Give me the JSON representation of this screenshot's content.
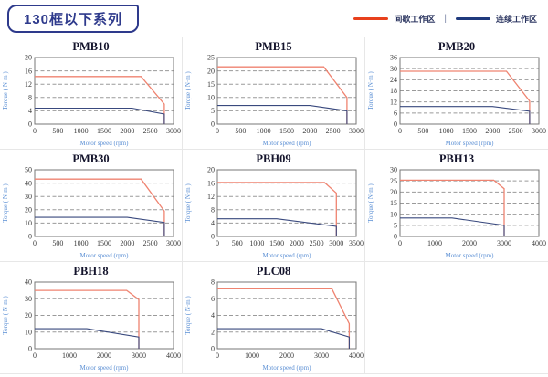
{
  "header": {
    "title": "130框以下系列",
    "legend_separator": "|",
    "legend": [
      {
        "name": "intermittent-zone",
        "label": "间歇工作区",
        "color": "#e8401c"
      },
      {
        "name": "continuous-zone",
        "label": "连续工作区",
        "color": "#1f3a7d"
      }
    ]
  },
  "colors": {
    "accent_navy": "#2e3a8c",
    "curve_red": "#ef8370",
    "curve_blue": "#39497e",
    "gridline": "#9a9a9a",
    "axis_frame": "#777777",
    "axis_label_blue": "#5b8fd4"
  },
  "chart_data": [
    {
      "type": "line",
      "title": "PMB10",
      "xlabel": "Motor speed (rpm)",
      "ylabel": "Torque ( N·m )",
      "xlim": [
        0,
        3000
      ],
      "xticks": [
        0,
        500,
        1000,
        1500,
        2000,
        2500,
        3000
      ],
      "ylim": [
        0,
        20
      ],
      "yticks": [
        0,
        4,
        8,
        12,
        16,
        20
      ],
      "grid": "dashed-horizontal",
      "legend_position": "none",
      "series": [
        {
          "name": "间歇工作区",
          "color": "#ef8370",
          "points": [
            [
              0,
              14.3
            ],
            [
              2300,
              14.3
            ],
            [
              2800,
              6
            ],
            [
              2800,
              0
            ]
          ]
        },
        {
          "name": "连续工作区",
          "color": "#39497e",
          "points": [
            [
              0,
              4.8
            ],
            [
              2100,
              4.8
            ],
            [
              2800,
              3
            ],
            [
              2800,
              0
            ]
          ]
        }
      ]
    },
    {
      "type": "line",
      "title": "PMB15",
      "xlabel": "Motor speed (rpm)",
      "ylabel": "Torque ( N·m )",
      "xlim": [
        0,
        3000
      ],
      "xticks": [
        0,
        500,
        1000,
        1500,
        2000,
        2500,
        3000
      ],
      "ylim": [
        0,
        25
      ],
      "yticks": [
        0,
        5,
        10,
        15,
        20,
        25
      ],
      "grid": "dashed-horizontal",
      "legend_position": "none",
      "series": [
        {
          "name": "间歇工作区",
          "color": "#ef8370",
          "points": [
            [
              0,
              21.5
            ],
            [
              2300,
              21.5
            ],
            [
              2800,
              10
            ],
            [
              2800,
              0
            ]
          ]
        },
        {
          "name": "连续工作区",
          "color": "#39497e",
          "points": [
            [
              0,
              7
            ],
            [
              2000,
              7
            ],
            [
              2800,
              5
            ],
            [
              2800,
              0
            ]
          ]
        }
      ]
    },
    {
      "type": "line",
      "title": "PMB20",
      "xlabel": "Motor speed (rpm)",
      "ylabel": "Torque ( N·m )",
      "xlim": [
        0,
        3000
      ],
      "xticks": [
        0,
        500,
        1000,
        1500,
        2000,
        2500,
        3000
      ],
      "ylim": [
        0,
        36
      ],
      "yticks": [
        0,
        6,
        12,
        18,
        24,
        30,
        36
      ],
      "grid": "dashed-horizontal",
      "legend_position": "none",
      "series": [
        {
          "name": "间歇工作区",
          "color": "#ef8370",
          "points": [
            [
              0,
              28.6
            ],
            [
              2300,
              28.6
            ],
            [
              2800,
              12.5
            ],
            [
              2800,
              0
            ]
          ]
        },
        {
          "name": "连续工作区",
          "color": "#39497e",
          "points": [
            [
              0,
              9.5
            ],
            [
              2000,
              9.5
            ],
            [
              2800,
              7
            ],
            [
              2800,
              0
            ]
          ]
        }
      ]
    },
    {
      "type": "line",
      "title": "PMB30",
      "xlabel": "Motor speed (rpm)",
      "ylabel": "Torque ( N·m )",
      "xlim": [
        0,
        3000
      ],
      "xticks": [
        0,
        500,
        1000,
        1500,
        2000,
        2500,
        3000
      ],
      "ylim": [
        0,
        50
      ],
      "yticks": [
        0,
        10,
        20,
        30,
        40,
        50
      ],
      "grid": "dashed-horizontal",
      "legend_position": "none",
      "series": [
        {
          "name": "间歇工作区",
          "color": "#ef8370",
          "points": [
            [
              0,
              43
            ],
            [
              2300,
              43
            ],
            [
              2800,
              19
            ],
            [
              2800,
              0
            ]
          ]
        },
        {
          "name": "连续工作区",
          "color": "#39497e",
          "points": [
            [
              0,
              14.3
            ],
            [
              2000,
              14.3
            ],
            [
              2800,
              10.5
            ],
            [
              2800,
              0
            ]
          ]
        }
      ]
    },
    {
      "type": "line",
      "title": "PBH09",
      "xlabel": "Motor speed (rpm)",
      "ylabel": "Torque ( N·m )",
      "xlim": [
        0,
        3500
      ],
      "xticks": [
        0,
        500,
        1000,
        1500,
        2000,
        2500,
        3000,
        3500
      ],
      "ylim": [
        0,
        20
      ],
      "yticks": [
        0,
        4,
        8,
        12,
        16,
        20
      ],
      "grid": "dashed-horizontal",
      "legend_position": "none",
      "series": [
        {
          "name": "间歇工作区",
          "color": "#ef8370",
          "points": [
            [
              0,
              16.2
            ],
            [
              2700,
              16.2
            ],
            [
              3000,
              13
            ],
            [
              3000,
              0
            ]
          ]
        },
        {
          "name": "连续工作区",
          "color": "#39497e",
          "points": [
            [
              0,
              5.3
            ],
            [
              1500,
              5.3
            ],
            [
              3000,
              3
            ],
            [
              3000,
              0
            ]
          ]
        }
      ]
    },
    {
      "type": "line",
      "title": "PBH13",
      "xlabel": "Motor speed (rpm)",
      "ylabel": "Torque ( N·m )",
      "xlim": [
        0,
        4000
      ],
      "xticks": [
        0,
        1000,
        2000,
        3000,
        4000
      ],
      "ylim": [
        0,
        30
      ],
      "yticks": [
        0,
        5,
        10,
        15,
        20,
        25,
        30
      ],
      "grid": "dashed-horizontal",
      "legend_position": "none",
      "series": [
        {
          "name": "间歇工作区",
          "color": "#ef8370",
          "points": [
            [
              0,
              25.3
            ],
            [
              2700,
              25.3
            ],
            [
              3000,
              21.5
            ],
            [
              3000,
              0
            ]
          ]
        },
        {
          "name": "连续工作区",
          "color": "#39497e",
          "points": [
            [
              0,
              8.3
            ],
            [
              1500,
              8.3
            ],
            [
              3000,
              5
            ],
            [
              3000,
              0
            ]
          ]
        }
      ]
    },
    {
      "type": "line",
      "title": "PBH18",
      "xlabel": "Motor speed (rpm)",
      "ylabel": "Torque ( N·m )",
      "xlim": [
        0,
        4000
      ],
      "xticks": [
        0,
        1000,
        2000,
        3000,
        4000
      ],
      "ylim": [
        0,
        40
      ],
      "yticks": [
        0,
        10,
        20,
        30,
        40
      ],
      "grid": "dashed-horizontal",
      "legend_position": "none",
      "series": [
        {
          "name": "间歇工作区",
          "color": "#ef8370",
          "points": [
            [
              0,
              35
            ],
            [
              2650,
              35
            ],
            [
              3000,
              29.5
            ],
            [
              3000,
              0
            ]
          ]
        },
        {
          "name": "连续工作区",
          "color": "#39497e",
          "points": [
            [
              0,
              12
            ],
            [
              1500,
              12
            ],
            [
              3000,
              7
            ],
            [
              3000,
              0
            ]
          ]
        }
      ]
    },
    {
      "type": "line",
      "title": "PLC08",
      "xlabel": "Motor speed (rpm)",
      "ylabel": "Torque ( N·m )",
      "xlim": [
        0,
        4000
      ],
      "xticks": [
        0,
        1000,
        2000,
        3000,
        4000
      ],
      "ylim": [
        0,
        8
      ],
      "yticks": [
        0,
        2,
        4,
        6,
        8
      ],
      "grid": "dashed-horizontal",
      "legend_position": "none",
      "series": [
        {
          "name": "间歇工作区",
          "color": "#ef8370",
          "points": [
            [
              0,
              7.2
            ],
            [
              3300,
              7.2
            ],
            [
              3800,
              3
            ],
            [
              3800,
              0
            ]
          ]
        },
        {
          "name": "连续工作区",
          "color": "#39497e",
          "points": [
            [
              0,
              2.4
            ],
            [
              3000,
              2.4
            ],
            [
              3800,
              1.4
            ],
            [
              3800,
              0
            ]
          ]
        }
      ]
    }
  ]
}
